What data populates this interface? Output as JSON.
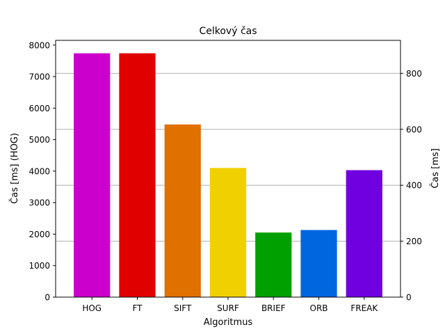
{
  "chart_data": {
    "type": "bar",
    "title": "Celkový čas",
    "xlabel": "Algoritmus",
    "ylabel_left": "Čas [ms] (HOG)",
    "ylabel_right": "Čas [ms]",
    "categories": [
      "HOG",
      "FT",
      "SIFT",
      "SURF",
      "BRIEF",
      "ORB",
      "FREAK"
    ],
    "values": [
      7740,
      7740,
      5480,
      4100,
      2050,
      2130,
      4030
    ],
    "colors": [
      "#cc00cc",
      "#e00000",
      "#e07000",
      "#f0d000",
      "#00a000",
      "#0066e0",
      "#7000e0"
    ],
    "ylim_left": [
      0,
      8150
    ],
    "yticks_left": [
      0,
      1000,
      2000,
      3000,
      4000,
      5000,
      6000,
      7000,
      8000
    ],
    "ylim_right": [
      0,
      918
    ],
    "yticks_right": [
      0,
      200,
      400,
      600,
      800
    ],
    "grid": "right-axis horizontal"
  }
}
